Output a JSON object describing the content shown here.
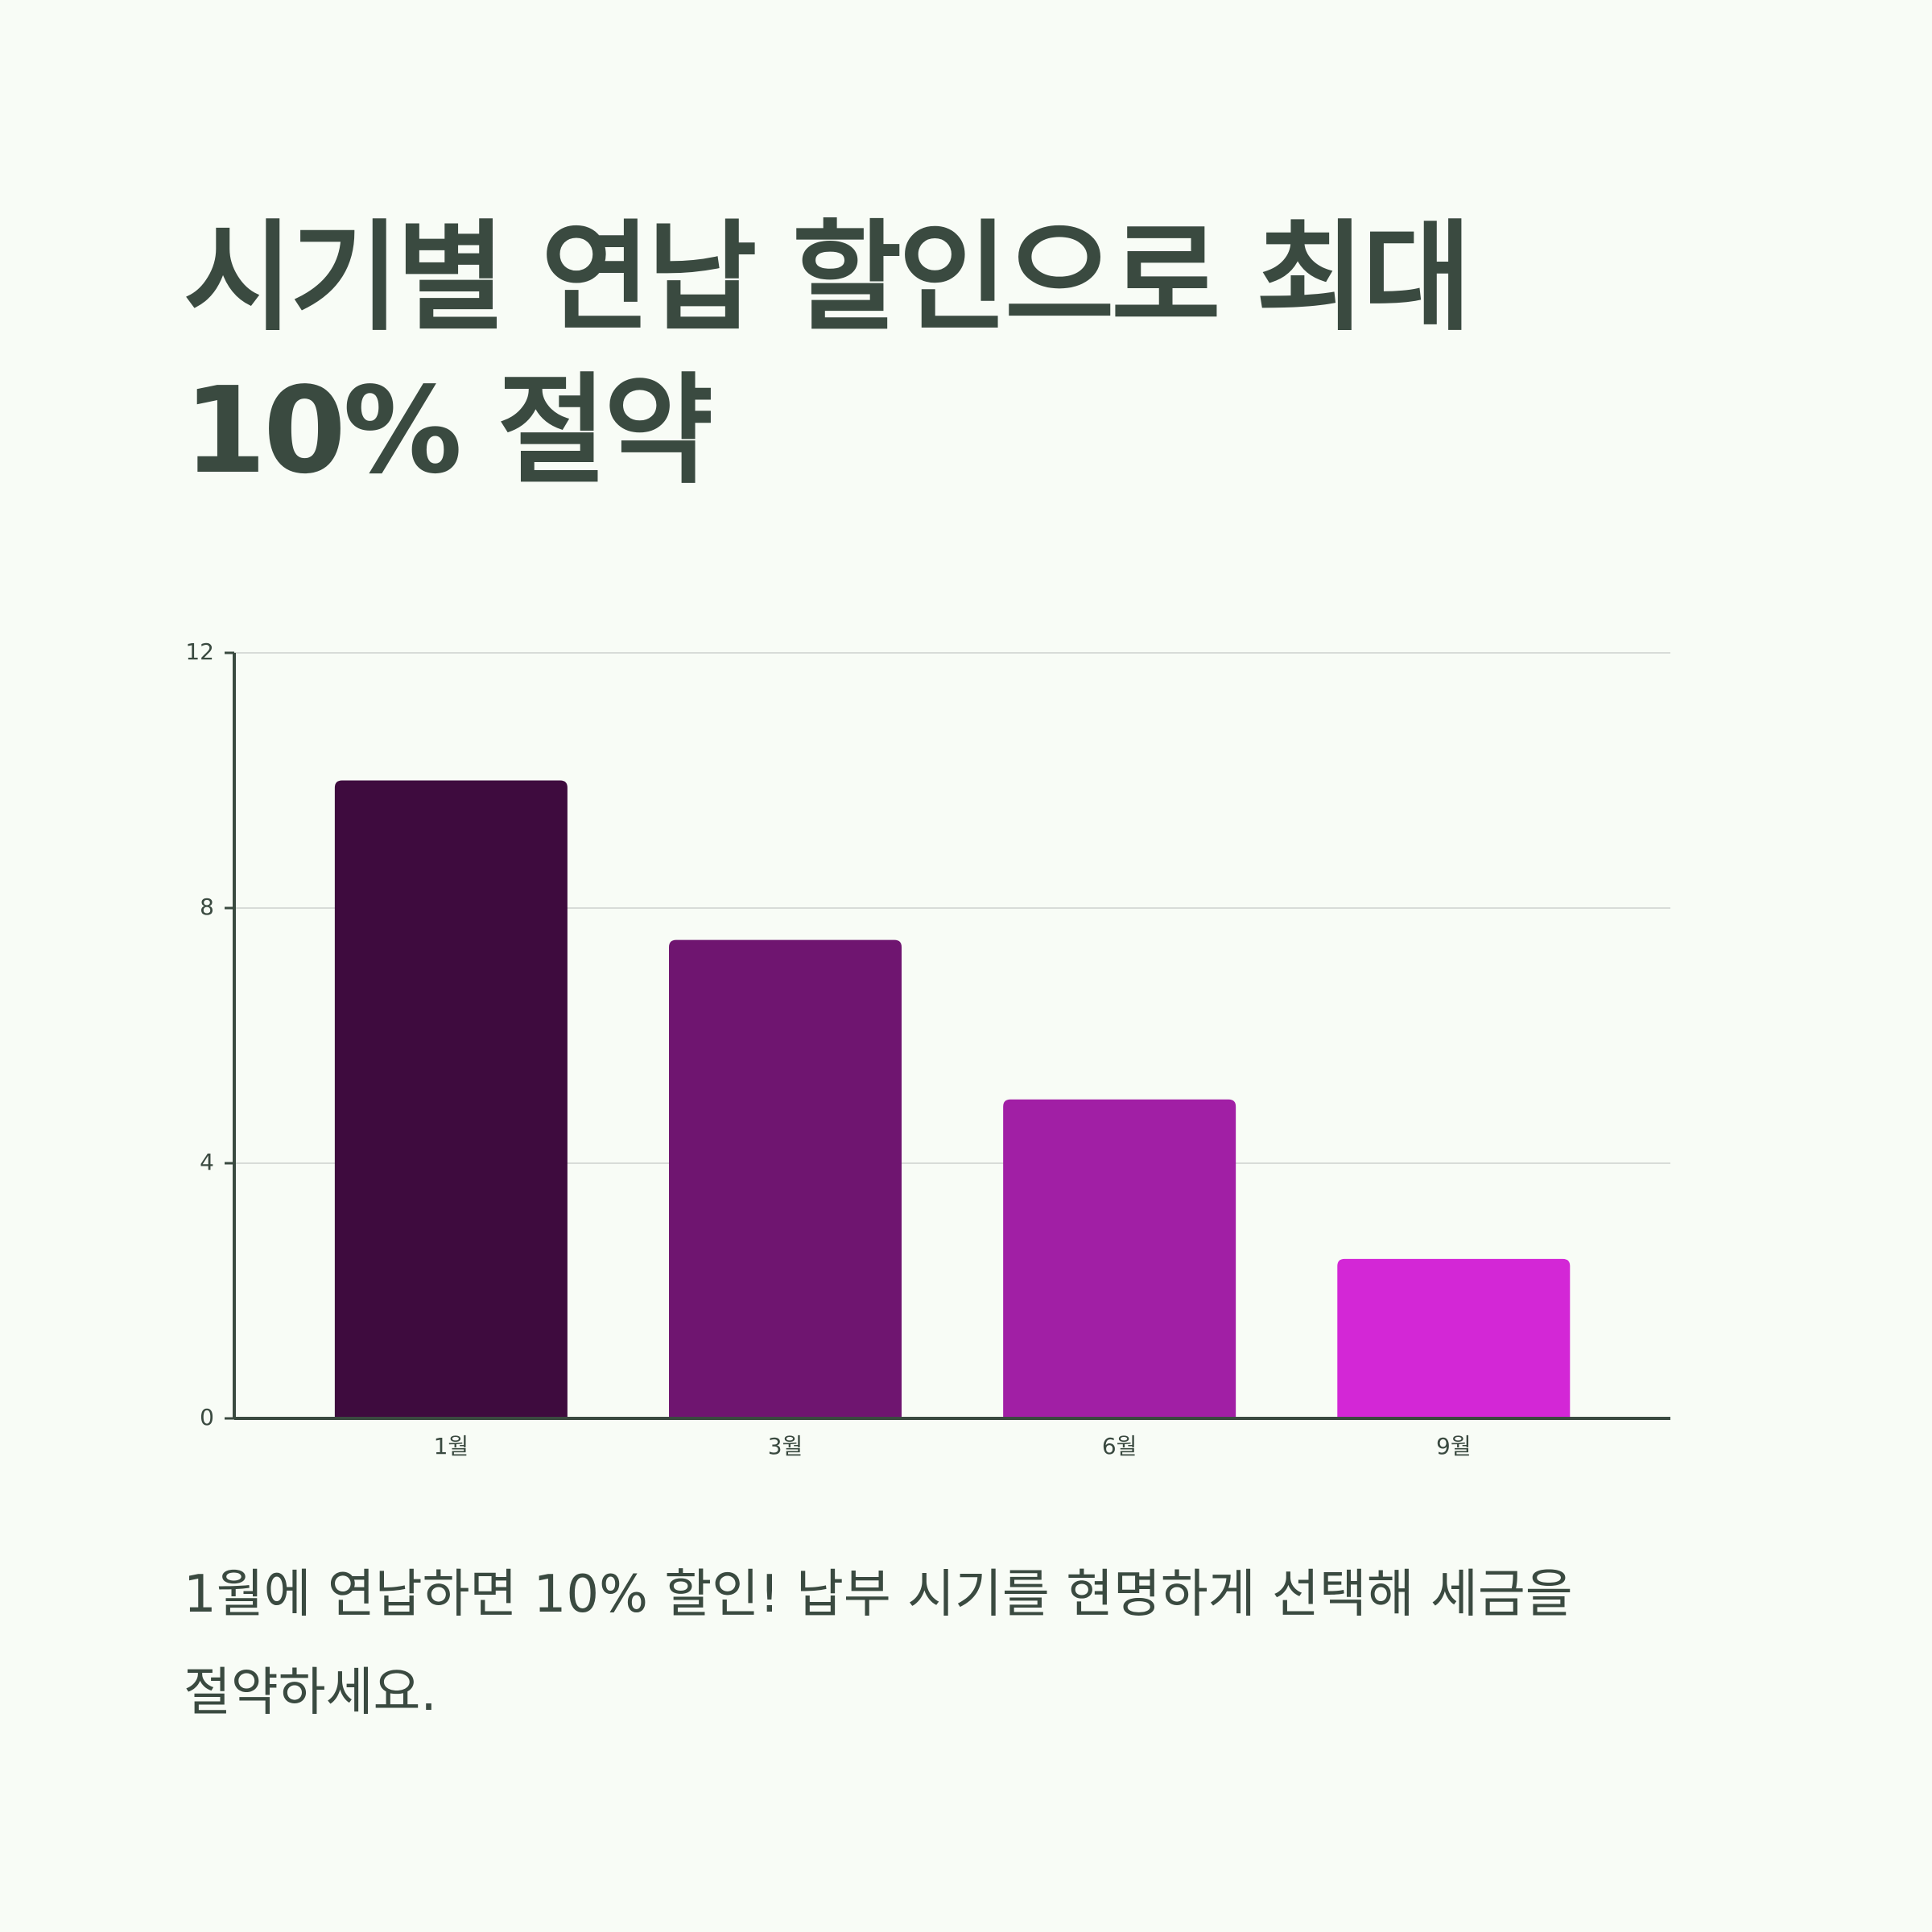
{
  "chart_data": {
    "type": "bar",
    "title": "시기별 연납 할인으로 최대 10% 절약",
    "caption": "1월에 연납하면 10% 할인! 납부 시기를 현명하게 선택해 세금을 절약하세요.",
    "categories": [
      "1월",
      "3월",
      "6월",
      "9월"
    ],
    "values": [
      10,
      7.5,
      5,
      2.5
    ],
    "colors": [
      "#3e0b3e",
      "#6f1570",
      "#a11fa5",
      "#d327d6"
    ],
    "ylim": [
      0,
      12
    ],
    "yticks": [
      0,
      4,
      8,
      12
    ],
    "grid": true
  }
}
